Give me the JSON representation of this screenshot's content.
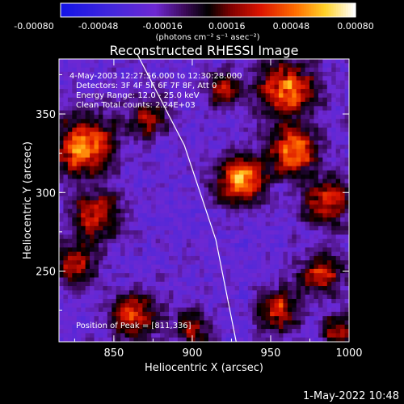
{
  "chart_data": {
    "type": "heatmap",
    "title": "Reconstructed RHESSI Image",
    "xlabel": "Heliocentric X (arcsec)",
    "ylabel": "Heliocentric Y (arcsec)",
    "xlim": [
      815,
      1000
    ],
    "ylim": [
      205,
      385
    ],
    "xticks": [
      850,
      900,
      950,
      1000
    ],
    "yticks": [
      250,
      300,
      350
    ],
    "colorbar": {
      "min": -0.0008,
      "max": 0.0008,
      "ticks": [
        "-0.00080",
        "-0.00048",
        "-0.00016",
        "0.00016",
        "0.00048",
        "0.00080"
      ],
      "unit_label": "(photons cm⁻² s⁻¹ asec⁻²)"
    },
    "annotations": [
      "4-May-2003 12:27:56.000 to 12:30:28.000",
      "Detectors: 3F 4F 5F 6F 7F 8F, Att 0",
      "Energy Range: 12.0 - 25.0 keV",
      "Clean     Total counts: 2.24E+03"
    ],
    "peak_label": "Position of Peak = [811,336]",
    "limb_curve": [
      [
        865,
        388
      ],
      [
        895,
        330
      ],
      [
        915,
        270
      ],
      [
        928,
        205
      ]
    ]
  },
  "footer": {
    "timestamp": "1-May-2022 10:48"
  }
}
